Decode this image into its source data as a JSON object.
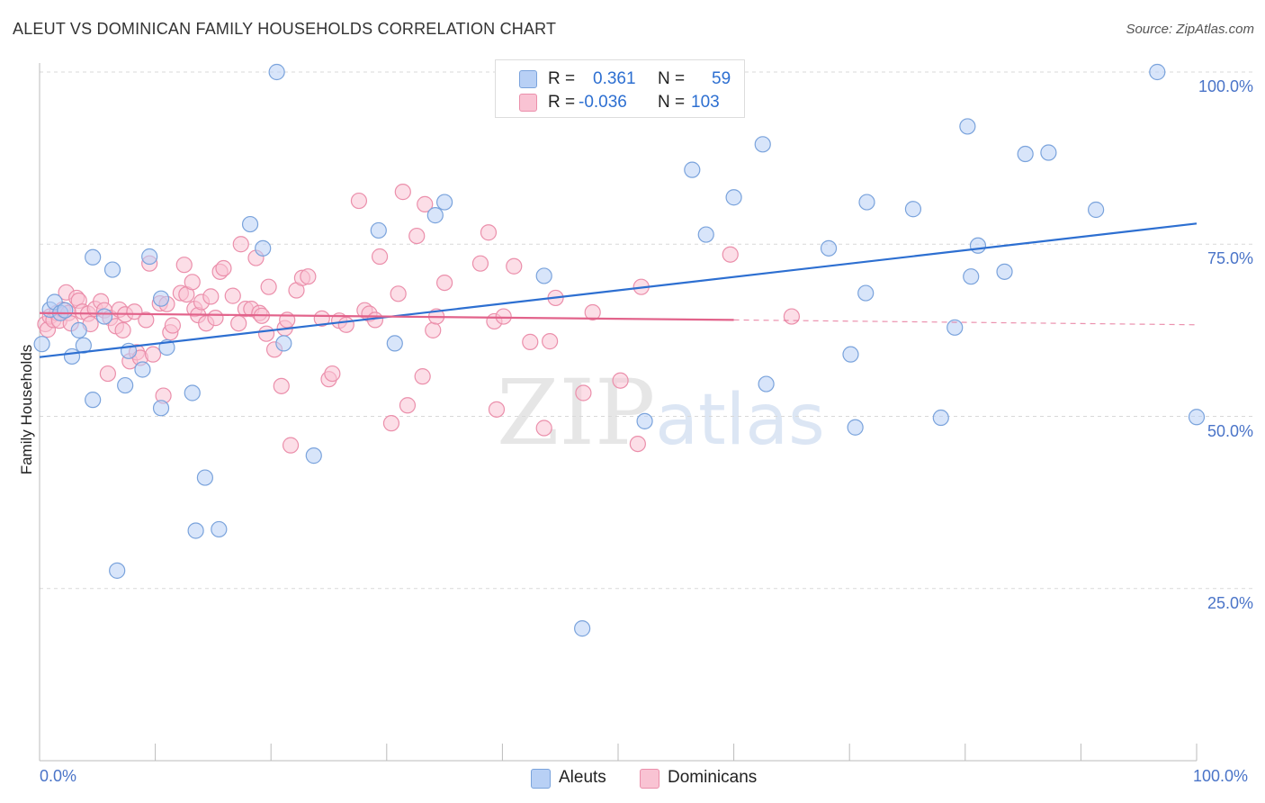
{
  "header": {
    "title": "ALEUT VS DOMINICAN FAMILY HOUSEHOLDS CORRELATION CHART",
    "source": "Source: ZipAtlas.com"
  },
  "watermark": {
    "zip": "ZIP",
    "atlas": "atlas"
  },
  "legend": {
    "rows": [
      {
        "r_label": "R =",
        "r_value": "0.361",
        "n_label": "N =",
        "n_value": "59"
      },
      {
        "r_label": "R =",
        "r_value": "-0.036",
        "n_label": "N =",
        "n_value": "103"
      }
    ],
    "bottom": [
      {
        "label": "Aleuts"
      },
      {
        "label": "Dominicans"
      }
    ]
  },
  "colors": {
    "aleut_fill": "#b8d0f5",
    "aleut_stroke": "#7aa3dc",
    "aleut_line": "#2d6fd1",
    "dominican_fill": "#f9c3d3",
    "dominican_stroke": "#eb8fab",
    "dominican_line": "#e2638b",
    "tick_text": "#4a74c8",
    "grid": "#d9d9d9"
  },
  "chart_data": {
    "type": "scatter",
    "title": "ALEUT VS DOMINICAN FAMILY HOUSEHOLDS CORRELATION CHART",
    "xlabel": "",
    "ylabel": "Family Households",
    "xlim": [
      0,
      100
    ],
    "ylim": [
      0,
      102
    ],
    "x_tick_labels": [
      "0.0%",
      "100.0%"
    ],
    "y_ticks": [
      25,
      50,
      75,
      100
    ],
    "y_tick_labels": [
      "25.0%",
      "50.0%",
      "75.0%",
      "100.0%"
    ],
    "grid": true,
    "legend_position": "top-center",
    "series": [
      {
        "name": "Aleuts",
        "r": 0.361,
        "n": 59,
        "trend": {
          "x": [
            0,
            100
          ],
          "y": [
            58.6,
            78.0
          ],
          "style": "solid"
        },
        "points": [
          [
            0.2,
            60.5
          ],
          [
            0.9,
            65.5
          ],
          [
            1.3,
            66.6
          ],
          [
            1.8,
            65.0
          ],
          [
            2.2,
            65.4
          ],
          [
            2.8,
            58.7
          ],
          [
            3.4,
            62.5
          ],
          [
            3.8,
            60.3
          ],
          [
            4.6,
            52.4
          ],
          [
            4.6,
            73.1
          ],
          [
            5.6,
            64.5
          ],
          [
            6.3,
            71.3
          ],
          [
            6.7,
            27.6
          ],
          [
            7.4,
            54.5
          ],
          [
            7.7,
            59.5
          ],
          [
            8.9,
            56.8
          ],
          [
            9.5,
            73.2
          ],
          [
            10.5,
            67.1
          ],
          [
            10.5,
            51.2
          ],
          [
            11.0,
            60.0
          ],
          [
            13.2,
            53.4
          ],
          [
            14.3,
            41.1
          ],
          [
            13.5,
            33.4
          ],
          [
            15.5,
            33.6
          ],
          [
            18.2,
            77.9
          ],
          [
            19.3,
            74.4
          ],
          [
            20.5,
            100.0
          ],
          [
            21.1,
            60.6
          ],
          [
            23.7,
            44.3
          ],
          [
            29.3,
            77.0
          ],
          [
            30.7,
            60.6
          ],
          [
            34.2,
            79.2
          ],
          [
            35.0,
            81.1
          ],
          [
            43.6,
            70.4
          ],
          [
            46.9,
            19.2
          ],
          [
            52.3,
            49.3
          ],
          [
            55.5,
            100.0
          ],
          [
            56.4,
            85.8
          ],
          [
            57.6,
            76.4
          ],
          [
            60.0,
            81.8
          ],
          [
            62.5,
            89.5
          ],
          [
            62.8,
            54.7
          ],
          [
            68.2,
            74.4
          ],
          [
            70.5,
            48.4
          ],
          [
            70.1,
            59.0
          ],
          [
            71.4,
            67.9
          ],
          [
            71.5,
            81.1
          ],
          [
            75.5,
            80.1
          ],
          [
            77.9,
            49.8
          ],
          [
            79.1,
            62.9
          ],
          [
            80.2,
            92.1
          ],
          [
            80.5,
            70.3
          ],
          [
            81.1,
            74.8
          ],
          [
            83.4,
            71.0
          ],
          [
            85.2,
            88.1
          ],
          [
            87.2,
            88.3
          ],
          [
            91.3,
            80.0
          ],
          [
            96.6,
            100.0
          ],
          [
            100.0,
            49.9
          ]
        ]
      },
      {
        "name": "Dominicans",
        "r": -0.036,
        "n": 103,
        "trend": {
          "x": [
            0,
            60,
            100
          ],
          "y": [
            65.0,
            64.0,
            63.3
          ],
          "style": "solid-then-dashed",
          "solid_until": 60
        },
        "points": [
          [
            0.5,
            63.4
          ],
          [
            0.7,
            62.6
          ],
          [
            0.9,
            64.5
          ],
          [
            1.2,
            64.0
          ],
          [
            1.5,
            65.0
          ],
          [
            1.7,
            63.9
          ],
          [
            2.0,
            65.5
          ],
          [
            2.3,
            68.0
          ],
          [
            2.5,
            65.0
          ],
          [
            2.7,
            63.5
          ],
          [
            3.2,
            67.2
          ],
          [
            3.4,
            66.8
          ],
          [
            3.7,
            65.2
          ],
          [
            4.2,
            64.9
          ],
          [
            4.4,
            63.4
          ],
          [
            4.8,
            65.6
          ],
          [
            5.3,
            66.7
          ],
          [
            5.6,
            65.4
          ],
          [
            5.9,
            56.2
          ],
          [
            6.1,
            64.3
          ],
          [
            6.6,
            63.1
          ],
          [
            6.9,
            65.5
          ],
          [
            7.2,
            62.5
          ],
          [
            7.4,
            64.8
          ],
          [
            7.8,
            58.0
          ],
          [
            8.2,
            65.2
          ],
          [
            8.4,
            59.3
          ],
          [
            8.7,
            58.5
          ],
          [
            9.2,
            64.0
          ],
          [
            9.5,
            72.2
          ],
          [
            9.8,
            59.0
          ],
          [
            10.4,
            66.4
          ],
          [
            10.7,
            53.0
          ],
          [
            11.0,
            66.3
          ],
          [
            11.3,
            62.2
          ],
          [
            11.5,
            63.2
          ],
          [
            12.2,
            67.9
          ],
          [
            12.5,
            72.0
          ],
          [
            12.7,
            67.7
          ],
          [
            13.2,
            69.5
          ],
          [
            13.4,
            65.6
          ],
          [
            13.7,
            64.7
          ],
          [
            14.0,
            66.6
          ],
          [
            14.4,
            63.5
          ],
          [
            14.8,
            67.4
          ],
          [
            15.2,
            64.3
          ],
          [
            15.6,
            71.0
          ],
          [
            15.9,
            71.5
          ],
          [
            16.7,
            67.5
          ],
          [
            17.2,
            63.5
          ],
          [
            17.4,
            75.0
          ],
          [
            17.8,
            65.6
          ],
          [
            18.3,
            65.6
          ],
          [
            18.7,
            73.0
          ],
          [
            19.0,
            65.0
          ],
          [
            19.2,
            64.6
          ],
          [
            19.6,
            62.0
          ],
          [
            19.8,
            68.8
          ],
          [
            20.3,
            59.7
          ],
          [
            20.9,
            54.4
          ],
          [
            21.2,
            62.8
          ],
          [
            21.4,
            64.0
          ],
          [
            21.7,
            45.8
          ],
          [
            22.2,
            68.3
          ],
          [
            22.7,
            70.1
          ],
          [
            23.2,
            70.3
          ],
          [
            24.4,
            64.2
          ],
          [
            25.0,
            55.4
          ],
          [
            25.3,
            56.2
          ],
          [
            25.9,
            63.9
          ],
          [
            26.5,
            63.3
          ],
          [
            27.6,
            81.3
          ],
          [
            28.1,
            65.4
          ],
          [
            28.5,
            64.9
          ],
          [
            29.0,
            64.0
          ],
          [
            29.4,
            73.2
          ],
          [
            30.4,
            49.0
          ],
          [
            31.0,
            67.8
          ],
          [
            31.4,
            82.6
          ],
          [
            31.8,
            51.6
          ],
          [
            32.6,
            76.2
          ],
          [
            33.1,
            55.8
          ],
          [
            33.3,
            80.8
          ],
          [
            34.0,
            62.5
          ],
          [
            34.3,
            64.5
          ],
          [
            35.0,
            69.4
          ],
          [
            38.1,
            72.2
          ],
          [
            38.8,
            76.7
          ],
          [
            39.3,
            63.8
          ],
          [
            39.5,
            51.0
          ],
          [
            40.1,
            64.5
          ],
          [
            41.0,
            71.8
          ],
          [
            42.4,
            60.8
          ],
          [
            43.6,
            48.3
          ],
          [
            44.1,
            60.9
          ],
          [
            44.6,
            67.2
          ],
          [
            47.0,
            53.4
          ],
          [
            47.8,
            65.1
          ],
          [
            50.2,
            55.2
          ],
          [
            52.0,
            68.8
          ],
          [
            51.7,
            46.0
          ],
          [
            59.7,
            73.5
          ],
          [
            65.0,
            64.5
          ]
        ]
      }
    ]
  }
}
